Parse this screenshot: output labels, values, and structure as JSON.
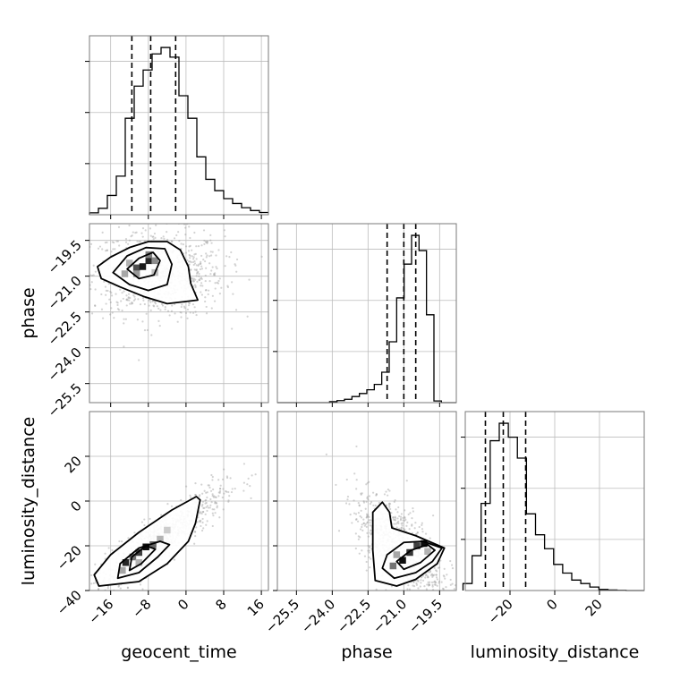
{
  "chart_data": {
    "type": "scatter",
    "subtype": "corner-plot",
    "parameters": [
      "geocent_time",
      "phase",
      "luminosity_distance"
    ],
    "axis_labels": {
      "geocent_time": "geocent_time",
      "phase": "phase",
      "luminosity_distance": "luminosity_distance"
    },
    "ranges": {
      "geocent_time": [
        -20.5,
        17.5
      ],
      "phase": [
        -26.3,
        -18.8
      ],
      "luminosity_distance": [
        -40,
        40
      ]
    },
    "ticks": {
      "geocent_time": {
        "values": [
          -16,
          -8,
          0,
          8,
          16
        ],
        "labels": [
          "−16",
          "−8",
          "0",
          "8",
          "16"
        ]
      },
      "phase": {
        "values": [
          -25.5,
          -24.0,
          -22.5,
          -21.0,
          -19.5
        ],
        "labels": [
          "−25.5",
          "−24.0",
          "−22.5",
          "−21.0",
          "−19.5"
        ]
      },
      "luminosity_distance": {
        "values": [
          -40,
          -20,
          0,
          20
        ],
        "labels": [
          "−40",
          "−20",
          "0",
          "20"
        ]
      },
      "luminosity_distance_diag": {
        "values": [
          -20,
          0,
          20
        ],
        "labels": [
          "−20",
          "0",
          "20"
        ]
      }
    },
    "quantiles": {
      "geocent_time": [
        -11.5,
        -7.5,
        -2.2
      ],
      "phase": [
        -21.7,
        -21.0,
        -20.5
      ],
      "luminosity_distance": [
        -31,
        -23,
        -13
      ]
    },
    "histograms": {
      "geocent_time": {
        "range": [
          -20.5,
          17.5
        ],
        "counts": [
          0.6,
          2.0,
          6.0,
          12.0,
          30.0,
          40.0,
          45.0,
          50.0,
          52.0,
          49.0,
          37.0,
          30.0,
          18.0,
          11.0,
          7.5,
          5.0,
          3.5,
          2.2,
          1.3,
          0.7
        ]
      },
      "phase": {
        "range": [
          -26.3,
          -18.8
        ],
        "counts": [
          0,
          0,
          0,
          0,
          0,
          0,
          0,
          0.3,
          0.6,
          1.0,
          1.8,
          2.7,
          3.8,
          5.4,
          9.0,
          18.0,
          31.0,
          41.0,
          49.5,
          45.0,
          26.0,
          0.5,
          0,
          0
        ]
      },
      "luminosity_distance": {
        "range": [
          -41,
          40
        ],
        "counts": [
          2.0,
          10.0,
          25.0,
          43.0,
          48.0,
          44.0,
          38.0,
          22.0,
          16.0,
          12.0,
          7.5,
          5.0,
          3.0,
          2.0,
          1.0,
          0.3,
          0.15,
          0.05,
          0,
          0
        ]
      }
    },
    "pairs": [
      {
        "x": "geocent_time",
        "y": "phase",
        "contour_levels": [
          [
            [
              -18.8,
              -20.6
            ],
            [
              -16.0,
              -20.2
            ],
            [
              -12.0,
              -19.8
            ],
            [
              -8.0,
              -19.55
            ],
            [
              -4.0,
              -19.55
            ],
            [
              -1.2,
              -19.9
            ],
            [
              0.5,
              -20.6
            ],
            [
              1.0,
              -21.3
            ],
            [
              2.5,
              -22.0
            ],
            [
              -4.0,
              -22.15
            ],
            [
              -9.0,
              -21.85
            ],
            [
              -14.0,
              -21.45
            ],
            [
              -18.0,
              -21.1
            ]
          ],
          [
            [
              -15.5,
              -20.85
            ],
            [
              -12.5,
              -20.15
            ],
            [
              -8.5,
              -19.8
            ],
            [
              -4.5,
              -19.85
            ],
            [
              -3.0,
              -20.5
            ],
            [
              -4.0,
              -21.35
            ],
            [
              -8.0,
              -21.6
            ],
            [
              -12.0,
              -21.35
            ]
          ],
          [
            [
              -12.5,
              -20.7
            ],
            [
              -10.0,
              -20.25
            ],
            [
              -7.0,
              -20.0
            ],
            [
              -5.5,
              -20.35
            ],
            [
              -6.8,
              -20.95
            ],
            [
              -10.0,
              -21.1
            ]
          ]
        ],
        "density_cells": [
          [
            -13,
            -20.9,
            0.35
          ],
          [
            -10.5,
            -20.65,
            0.7
          ],
          [
            -9.2,
            -20.6,
            0.9
          ],
          [
            -7.9,
            -20.35,
            0.85
          ],
          [
            -6.6,
            -20.35,
            0.45
          ],
          [
            -7.9,
            -20.1,
            0.5
          ],
          [
            -10.5,
            -20.9,
            0.4
          ],
          [
            -12.0,
            -20.45,
            0.3
          ],
          [
            -6.6,
            -20.85,
            0.25
          ]
        ],
        "scatter_cloud": {
          "x_center": -6,
          "x_spread": 7,
          "y_center": -20.9,
          "y_spread": 0.9,
          "n": 900
        }
      },
      {
        "x": "geocent_time",
        "y": "luminosity_distance",
        "contour_levels": [
          [
            [
              -18.5,
              -38.0
            ],
            [
              -10.0,
              -36.0
            ],
            [
              -4.0,
              -28.0
            ],
            [
              0.5,
              -18.0
            ],
            [
              2.0,
              -10.0
            ],
            [
              3.0,
              0.5
            ],
            [
              2.2,
              2.0
            ],
            [
              -3.0,
              -4.0
            ],
            [
              -10.0,
              -14.0
            ],
            [
              -16.0,
              -24.0
            ],
            [
              -19.5,
              -33.0
            ]
          ],
          [
            [
              -14.5,
              -34.5
            ],
            [
              -10.0,
              -32.0
            ],
            [
              -6.0,
              -25.0
            ],
            [
              -3.5,
              -19.5
            ],
            [
              -5.5,
              -18.0
            ],
            [
              -10.0,
              -21.0
            ],
            [
              -14.0,
              -28.0
            ]
          ],
          [
            [
              -12.0,
              -31.0
            ],
            [
              -9.5,
              -28.0
            ],
            [
              -6.5,
              -21.5
            ],
            [
              -8.5,
              -20.0
            ],
            [
              -11.5,
              -25.0
            ]
          ]
        ],
        "density_cells": [
          [
            -12.8,
            -27.5,
            0.85
          ],
          [
            -11.3,
            -25.0,
            0.55
          ],
          [
            -10.0,
            -23.0,
            0.75
          ],
          [
            -8.5,
            -20.5,
            0.95
          ],
          [
            -7.0,
            -19.5,
            0.6
          ],
          [
            -13.5,
            -31.0,
            0.35
          ],
          [
            -5.5,
            -17.0,
            0.3
          ],
          [
            -10.0,
            -27.5,
            0.3
          ],
          [
            -4.0,
            -13.0,
            0.2
          ]
        ],
        "scatter_cloud": {
          "x_center": -6,
          "x_spread": 7,
          "y_center": -18,
          "y_spread": 12,
          "correlation": 0.9,
          "n": 900
        }
      },
      {
        "x": "phase",
        "y": "luminosity_distance",
        "contour_levels": [
          [
            [
              -21.9,
              -0.5
            ],
            [
              -21.6,
              -5.0
            ],
            [
              -21.5,
              -12.0
            ],
            [
              -20.5,
              -15.5
            ],
            [
              -19.3,
              -21.0
            ],
            [
              -19.6,
              -28.0
            ],
            [
              -20.5,
              -35.0
            ],
            [
              -21.3,
              -38.0
            ],
            [
              -22.2,
              -35.5
            ],
            [
              -22.3,
              -22.0
            ],
            [
              -22.3,
              -5.0
            ]
          ],
          [
            [
              -21.7,
              -24.0
            ],
            [
              -21.0,
              -18.5
            ],
            [
              -20.2,
              -18.0
            ],
            [
              -19.4,
              -21.0
            ],
            [
              -19.8,
              -27.0
            ],
            [
              -20.5,
              -32.0
            ],
            [
              -21.4,
              -34.5
            ],
            [
              -21.9,
              -30.0
            ]
          ],
          [
            [
              -21.3,
              -27.0
            ],
            [
              -20.7,
              -22.0
            ],
            [
              -20.0,
              -19.5
            ],
            [
              -19.7,
              -22.0
            ],
            [
              -20.3,
              -27.5
            ],
            [
              -21.0,
              -30.5
            ]
          ]
        ],
        "density_cells": [
          [
            -21.45,
            -29.0,
            0.55
          ],
          [
            -21.05,
            -26.5,
            0.95
          ],
          [
            -20.75,
            -23.0,
            0.8
          ],
          [
            -20.45,
            -20.0,
            0.75
          ],
          [
            -20.15,
            -19.0,
            0.95
          ],
          [
            -21.3,
            -24.0,
            0.35
          ],
          [
            -20.0,
            -22.5,
            0.3
          ]
        ],
        "scatter_cloud": {
          "x_center": -21.2,
          "x_spread": 0.9,
          "y_center": -20,
          "y_spread": 11,
          "correlation": -0.6,
          "n": 900
        }
      }
    ]
  }
}
